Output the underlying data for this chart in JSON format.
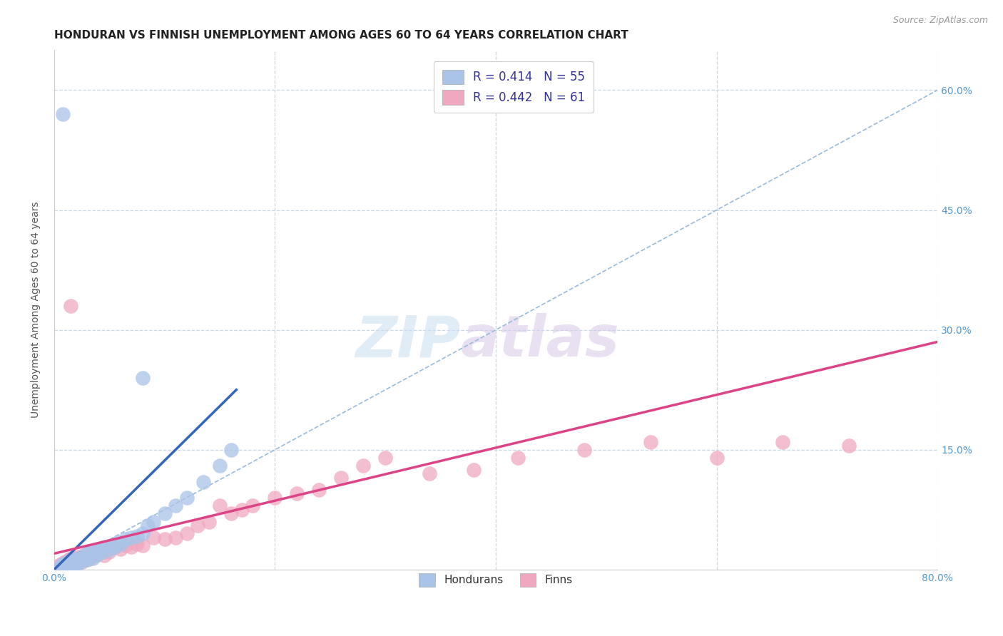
{
  "title": "HONDURAN VS FINNISH UNEMPLOYMENT AMONG AGES 60 TO 64 YEARS CORRELATION CHART",
  "source": "Source: ZipAtlas.com",
  "ylabel": "Unemployment Among Ages 60 to 64 years",
  "xlim": [
    0.0,
    0.8
  ],
  "ylim": [
    0.0,
    0.65
  ],
  "xticks": [
    0.0,
    0.2,
    0.4,
    0.6,
    0.8
  ],
  "xticklabels": [
    "0.0%",
    "",
    "",
    "",
    "80.0%"
  ],
  "yticks": [
    0.0,
    0.15,
    0.3,
    0.45,
    0.6
  ],
  "right_yticklabels": [
    "",
    "15.0%",
    "30.0%",
    "45.0%",
    "60.0%"
  ],
  "legend_labels": [
    "R = 0.414   N = 55",
    "R = 0.442   N = 61"
  ],
  "background_color": "#ffffff",
  "grid_color": "#c8d8e8",
  "honduran_color": "#aac4e8",
  "finn_color": "#f0a8c0",
  "honduran_line_color": "#3366bb",
  "finn_line_color": "#dd4488",
  "dashed_line_color": "#99bbdd",
  "watermark_zip": "ZIP",
  "watermark_atlas": "atlas",
  "title_fontsize": 11,
  "axis_label_fontsize": 10,
  "tick_fontsize": 10,
  "tick_color": "#5599cc",
  "honduran_scatter_x": [
    0.005,
    0.007,
    0.008,
    0.01,
    0.01,
    0.012,
    0.013,
    0.014,
    0.015,
    0.015,
    0.016,
    0.017,
    0.018,
    0.018,
    0.019,
    0.02,
    0.02,
    0.021,
    0.022,
    0.023,
    0.024,
    0.025,
    0.025,
    0.027,
    0.028,
    0.03,
    0.03,
    0.032,
    0.033,
    0.035,
    0.036,
    0.038,
    0.04,
    0.042,
    0.044,
    0.046,
    0.05,
    0.052,
    0.055,
    0.058,
    0.06,
    0.065,
    0.07,
    0.075,
    0.08,
    0.085,
    0.09,
    0.1,
    0.11,
    0.12,
    0.135,
    0.15,
    0.16,
    0.08,
    0.008
  ],
  "honduran_scatter_y": [
    0.003,
    0.005,
    0.007,
    0.004,
    0.008,
    0.006,
    0.01,
    0.008,
    0.005,
    0.012,
    0.007,
    0.009,
    0.006,
    0.011,
    0.008,
    0.007,
    0.013,
    0.01,
    0.012,
    0.009,
    0.015,
    0.011,
    0.016,
    0.013,
    0.018,
    0.012,
    0.02,
    0.015,
    0.022,
    0.014,
    0.024,
    0.018,
    0.02,
    0.025,
    0.022,
    0.028,
    0.025,
    0.03,
    0.028,
    0.035,
    0.032,
    0.038,
    0.04,
    0.042,
    0.045,
    0.055,
    0.06,
    0.07,
    0.08,
    0.09,
    0.11,
    0.13,
    0.15,
    0.24,
    0.57
  ],
  "finn_scatter_x": [
    0.003,
    0.005,
    0.007,
    0.008,
    0.01,
    0.01,
    0.012,
    0.013,
    0.015,
    0.015,
    0.017,
    0.018,
    0.019,
    0.02,
    0.021,
    0.022,
    0.023,
    0.025,
    0.026,
    0.028,
    0.03,
    0.032,
    0.034,
    0.036,
    0.038,
    0.04,
    0.042,
    0.045,
    0.048,
    0.05,
    0.055,
    0.06,
    0.065,
    0.07,
    0.075,
    0.08,
    0.09,
    0.1,
    0.11,
    0.12,
    0.13,
    0.14,
    0.15,
    0.16,
    0.17,
    0.18,
    0.2,
    0.22,
    0.24,
    0.26,
    0.28,
    0.3,
    0.34,
    0.38,
    0.42,
    0.48,
    0.54,
    0.6,
    0.66,
    0.72,
    0.015
  ],
  "finn_scatter_y": [
    0.003,
    0.006,
    0.004,
    0.008,
    0.005,
    0.01,
    0.007,
    0.012,
    0.006,
    0.014,
    0.009,
    0.013,
    0.008,
    0.011,
    0.015,
    0.012,
    0.016,
    0.01,
    0.018,
    0.014,
    0.016,
    0.013,
    0.02,
    0.018,
    0.022,
    0.02,
    0.024,
    0.018,
    0.025,
    0.022,
    0.028,
    0.026,
    0.03,
    0.028,
    0.032,
    0.03,
    0.04,
    0.038,
    0.04,
    0.045,
    0.055,
    0.06,
    0.08,
    0.07,
    0.075,
    0.08,
    0.09,
    0.095,
    0.1,
    0.115,
    0.13,
    0.14,
    0.12,
    0.125,
    0.14,
    0.15,
    0.16,
    0.14,
    0.16,
    0.155,
    0.33
  ],
  "honduran_line_x": [
    0.0,
    0.165
  ],
  "honduran_line_y": [
    0.0,
    0.225
  ],
  "finn_line_x": [
    0.0,
    0.8
  ],
  "finn_line_y": [
    0.02,
    0.285
  ],
  "dashed_line_x": [
    0.0,
    0.8
  ],
  "dashed_line_y": [
    0.0,
    0.6
  ]
}
